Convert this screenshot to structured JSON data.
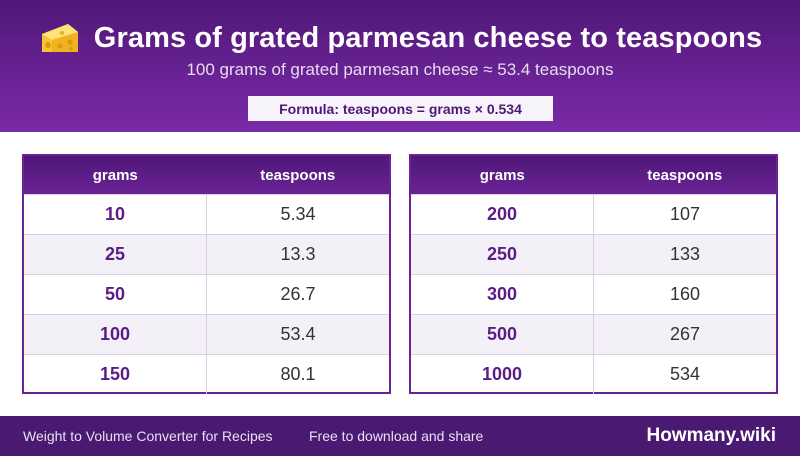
{
  "header": {
    "icon": "cheese-icon",
    "title": "Grams of grated parmesan cheese to teaspoons",
    "subtitle": "100 grams of grated parmesan cheese ≈ 53.4 teaspoons",
    "formula": "Formula: teaspoons = grams × 0.534"
  },
  "tables": [
    {
      "columns": [
        "grams",
        "teaspoons"
      ],
      "rows": [
        [
          "10",
          "5.34"
        ],
        [
          "25",
          "13.3"
        ],
        [
          "50",
          "26.7"
        ],
        [
          "100",
          "53.4"
        ],
        [
          "150",
          "80.1"
        ]
      ]
    },
    {
      "columns": [
        "grams",
        "teaspoons"
      ],
      "rows": [
        [
          "200",
          "107"
        ],
        [
          "250",
          "133"
        ],
        [
          "300",
          "160"
        ],
        [
          "500",
          "267"
        ],
        [
          "1000",
          "534"
        ]
      ]
    }
  ],
  "footer": {
    "left": "Weight to Volume Converter for Recipes",
    "middle": "Free to download and share",
    "brand": "Howmany.wiki"
  },
  "colors": {
    "primary": "#6a2395",
    "dark": "#4a1a73",
    "accent_text": "#5a1d86"
  }
}
